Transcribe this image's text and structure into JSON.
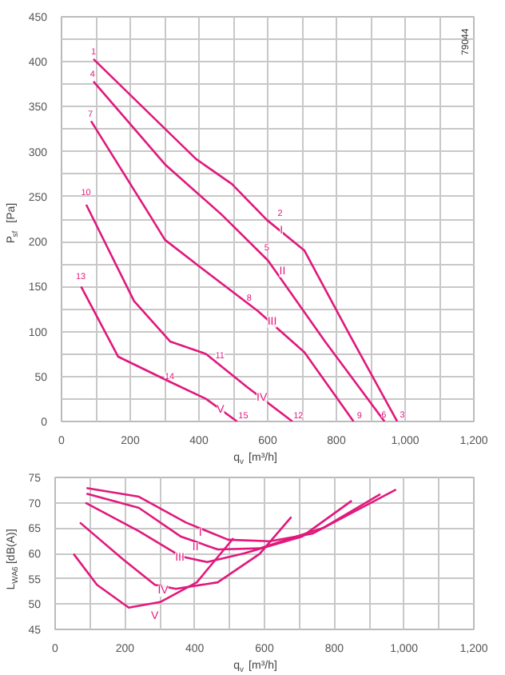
{
  "chart_data": [
    {
      "type": "line",
      "xlabel": "q$_{v}$ [m³/h]",
      "ylabel": "P$_{sf}$ [Pa]",
      "grid": true,
      "marker": "none",
      "line_style": "solid",
      "xlim": [
        0,
        1200
      ],
      "ylim": [
        0,
        450
      ],
      "xticks": [
        0,
        {
          "value": 100,
          "label": null
        },
        200,
        {
          "value": 300,
          "label": null
        },
        400,
        {
          "value": 500,
          "label": null
        },
        600,
        {
          "value": 700,
          "label": null
        },
        800,
        {
          "value": 900,
          "label": null
        },
        {
          "value": 1000,
          "label": "1,000"
        },
        {
          "value": 1100,
          "label": null
        },
        {
          "value": 1200,
          "label": "1,200"
        }
      ],
      "yticks": [
        0,
        {
          "value": 25,
          "label": null
        },
        50,
        {
          "value": 75,
          "label": null
        },
        100,
        {
          "value": 125,
          "label": null
        },
        150,
        {
          "value": 175,
          "label": null
        },
        200,
        {
          "value": 225,
          "label": null
        },
        250,
        {
          "value": 275,
          "label": null
        },
        300,
        {
          "value": 325,
          "label": null
        },
        350,
        {
          "value": 375,
          "label": null
        },
        400,
        {
          "value": 425,
          "label": null
        },
        450
      ],
      "series": [
        {
          "color": "#e0197d",
          "x": [
            93,
            391,
            496,
            598,
            707,
            842,
            977
          ],
          "values": [
            403,
            292,
            264,
            224,
            190,
            94,
            0
          ]
        },
        {
          "color": "#e0197d",
          "x": [
            93,
            301,
            466,
            601,
            767,
            940
          ],
          "values": [
            378,
            286,
            230,
            179,
            89,
            0
          ]
        },
        {
          "color": "#e0197d",
          "x": [
            86,
            256,
            301,
            406,
            571,
            707,
            850
          ],
          "values": [
            334,
            230,
            202,
            171,
            123,
            77,
            0
          ]
        },
        {
          "color": "#e0197d",
          "x": [
            72,
            211,
            316,
            421,
            541,
            672
          ],
          "values": [
            241,
            134,
            89,
            75,
            38,
            0
          ]
        },
        {
          "color": "#e0197d",
          "x": [
            57,
            165,
            316,
            421,
            511
          ],
          "values": [
            150,
            72,
            44,
            25,
            0
          ]
        }
      ],
      "annotations": [
        {
          "text": "I",
          "x": 598,
          "y": 224
        },
        {
          "text": "II",
          "x": 601,
          "y": 179
        },
        {
          "text": "III",
          "x": 571,
          "y": 123
        },
        {
          "text": "IV",
          "x": 541,
          "y": 38
        },
        {
          "text": "V",
          "x": 421,
          "y": 25
        },
        {
          "text": "1",
          "x": 93,
          "y": 412
        },
        {
          "text": "2",
          "x": 636,
          "y": 232
        },
        {
          "text": "3",
          "x": 992,
          "y": 8
        },
        {
          "text": "4",
          "x": 90,
          "y": 387
        },
        {
          "text": "5",
          "x": 597,
          "y": 194
        },
        {
          "text": "6",
          "x": 938,
          "y": 8
        },
        {
          "text": "7",
          "x": 84,
          "y": 342
        },
        {
          "text": "8",
          "x": 546,
          "y": 138
        },
        {
          "text": "9",
          "x": 867,
          "y": 7
        },
        {
          "text": "10",
          "x": 71,
          "y": 255
        },
        {
          "text": "11",
          "x": 461,
          "y": 74
        },
        {
          "text": "12",
          "x": 689,
          "y": 7
        },
        {
          "text": "13",
          "x": 56,
          "y": 162
        },
        {
          "text": "14",
          "x": 314,
          "y": 51
        },
        {
          "text": "15",
          "x": 529,
          "y": 7
        },
        "79044"
      ]
    },
    {
      "type": "line",
      "xlabel": "q$_{v}$ [m³/h]",
      "ylabel": "L$_{WA6}$ [dB(A)]",
      "grid": true,
      "marker": "none",
      "line_style": "solid",
      "xlim": [
        0,
        1200
      ],
      "ylim": [
        45,
        75
      ],
      "xticks": [
        0,
        {
          "value": 100,
          "label": null
        },
        200,
        {
          "value": 300,
          "label": null
        },
        400,
        {
          "value": 500,
          "label": null
        },
        600,
        {
          "value": 700,
          "label": null
        },
        800,
        {
          "value": 900,
          "label": null
        },
        {
          "value": 1000,
          "label": "1,000"
        },
        {
          "value": 1100,
          "label": null
        },
        {
          "value": 1200,
          "label": "1,200"
        }
      ],
      "yticks": [
        45,
        50,
        55,
        60,
        65,
        70,
        75
      ],
      "series": [
        {
          "color": "#e0197d",
          "x": [
            90,
            240,
            375,
            496,
            616,
            737,
            977
          ],
          "values": [
            72.9,
            71.2,
            66.1,
            62.7,
            62.4,
            63.9,
            72.6
          ]
        },
        {
          "color": "#e0197d",
          "x": [
            90,
            240,
            361,
            466,
            586,
            767,
            932
          ],
          "values": [
            71.8,
            69.0,
            63.3,
            60.8,
            61.0,
            65.0,
            71.7
          ]
        },
        {
          "color": "#e0197d",
          "x": [
            87,
            240,
            361,
            436,
            541,
            707,
            850
          ],
          "values": [
            70.0,
            64.4,
            59.4,
            58.3,
            60.0,
            63.3,
            70.4
          ]
        },
        {
          "color": "#e0197d",
          "x": [
            71,
            195,
            286,
            346,
            466,
            586,
            677
          ],
          "values": [
            66.1,
            58.8,
            53.8,
            53.0,
            54.3,
            59.9,
            67.2
          ]
        },
        {
          "color": "#e0197d",
          "x": [
            53,
            120,
            211,
            301,
            406,
            511
          ],
          "values": [
            59.9,
            53.8,
            49.3,
            50.4,
            54.3,
            63.0
          ]
        }
      ],
      "annotations": [
        {
          "text": "I",
          "x": 375,
          "y": 66.1
        },
        {
          "text": "II",
          "x": 361,
          "y": 63.3
        },
        {
          "text": "III",
          "x": 316,
          "y": 61.3
        },
        {
          "text": "IV",
          "x": 268,
          "y": 54.8
        },
        {
          "text": "V",
          "x": 244,
          "y": 49.7
        }
      ]
    }
  ]
}
